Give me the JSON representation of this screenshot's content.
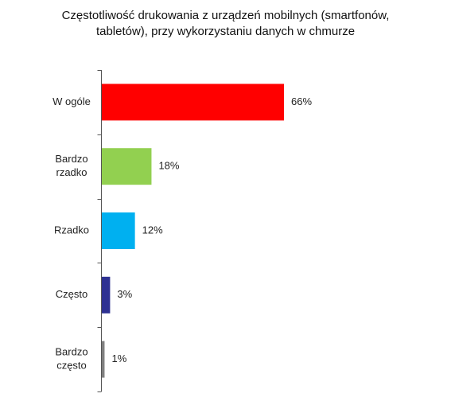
{
  "chart_data": {
    "type": "bar",
    "orientation": "horizontal",
    "title": "Częstotliwość drukowania z urządzeń mobilnych (smartfonów, tabletów), przy wykorzystaniu danych w chmurze",
    "title_lines": [
      "Częstotliwość drukowania z urządzeń mobilnych (smartfonów,",
      "tabletów), przy wykorzystaniu danych w chmurze"
    ],
    "categories": [
      [
        "W ogóle"
      ],
      [
        "Bardzo",
        "rzadko"
      ],
      [
        "Rzadko"
      ],
      [
        "Często"
      ],
      [
        "Bardzo",
        "często"
      ]
    ],
    "values": [
      66,
      18,
      12,
      3,
      1
    ],
    "value_labels": [
      "66%",
      "18%",
      "12%",
      "3%",
      "1%"
    ],
    "colors": [
      "#ff0000",
      "#92d050",
      "#00b0f0",
      "#2e3192",
      "#808080"
    ],
    "xlim": [
      0,
      100
    ],
    "grid": false,
    "legend": "none"
  }
}
